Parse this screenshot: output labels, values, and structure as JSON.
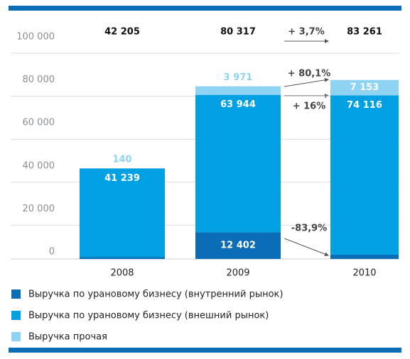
{
  "chart_data": {
    "type": "stacked_bar",
    "categories": [
      "2008",
      "2009",
      "2010"
    ],
    "series": [
      {
        "name": "Выручка по урановому бизнесу (внутренний рынок)",
        "color": "#0b6db5",
        "values": [
          826,
          12402,
          1992
        ],
        "value_labels": [
          "826",
          "12 402",
          "1 992"
        ]
      },
      {
        "name": "Выручка по урановому бизнесу (внешний рынок)",
        "color": "#00a0e3",
        "values": [
          41239,
          63944,
          74116
        ],
        "value_labels": [
          "41 239",
          "63 944",
          "74 116"
        ]
      },
      {
        "name": "Выручка прочая",
        "color": "#8fd3f2",
        "values": [
          140,
          3971,
          7153
        ],
        "value_labels": [
          "140",
          "3 971",
          "7 153"
        ]
      }
    ],
    "totals": {
      "values": [
        42205,
        80317,
        83261
      ],
      "value_labels": [
        "42 205",
        "80 317",
        "83 261"
      ]
    },
    "annotations": [
      "+ 3,7%",
      "+ 80,1%",
      "+ 16%",
      "-83,9%"
    ],
    "ylim": [
      0,
      100000
    ],
    "yticks": [
      0,
      {
        "value": 20000,
        "label": "20 000"
      },
      {
        "value": 40000,
        "label": "40 000"
      },
      {
        "value": 60000,
        "label": "60 000"
      },
      {
        "value": 80000,
        "label": "80 000"
      },
      {
        "value": 100000,
        "label": "100 000"
      }
    ],
    "grid": true
  }
}
